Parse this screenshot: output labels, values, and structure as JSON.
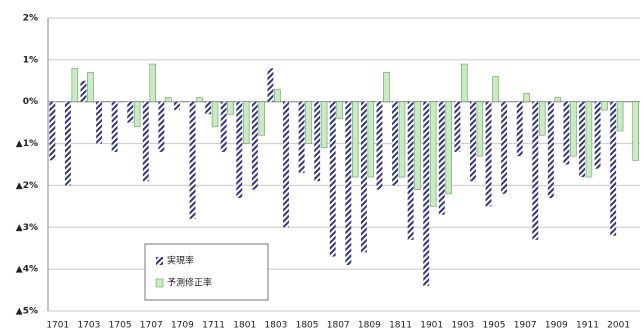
{
  "chart_data": {
    "type": "bar",
    "categories": [
      "1701",
      null,
      "1703",
      null,
      "1705",
      null,
      "1707",
      null,
      "1709",
      null,
      "1711",
      null,
      "1801",
      null,
      "1803",
      null,
      "1805",
      null,
      "1807",
      null,
      "1809",
      null,
      "1811",
      null,
      "1901",
      null,
      "1903",
      null,
      "1905",
      null,
      "1907",
      null,
      "1909",
      null,
      "1911",
      null,
      "2001",
      null
    ],
    "series": [
      {
        "name": "実現率",
        "color": "#33338f",
        "values": [
          -1.4,
          -2.0,
          0.5,
          -1.0,
          -1.2,
          -0.5,
          -1.9,
          -1.2,
          -0.2,
          -2.8,
          -0.3,
          -1.2,
          -2.3,
          -2.1,
          0.8,
          -3.0,
          -1.7,
          -1.9,
          -3.7,
          -3.9,
          -3.6,
          -2.1,
          -2.0,
          -3.3,
          -4.4,
          -2.7,
          -1.2,
          -1.9,
          -2.5,
          -2.2,
          -1.3,
          -3.3,
          -2.3,
          -1.5,
          -1.8,
          -1.6,
          -3.2,
          0
        ]
      },
      {
        "name": "予測修正率",
        "color": "#c8ecc0",
        "values": [
          0,
          0.8,
          0.7,
          0,
          0,
          -0.6,
          0.9,
          0.1,
          0,
          0.1,
          -0.6,
          -0.3,
          -1.0,
          -0.8,
          0.3,
          0,
          -1.0,
          -1.1,
          -0.4,
          -1.8,
          -1.8,
          0.7,
          -1.8,
          -2.1,
          -2.5,
          -2.2,
          0.9,
          -1.3,
          0.6,
          0,
          0.2,
          -0.8,
          0.1,
          -1.3,
          -1.8,
          -0.2,
          -0.7,
          -1.4
        ]
      }
    ],
    "ylim": [
      -5,
      2
    ],
    "yticks": [
      {
        "value": -5,
        "label": "▲5%"
      },
      {
        "value": -4,
        "label": "▲4%"
      },
      {
        "value": -3,
        "label": "▲3%"
      },
      {
        "value": -2,
        "label": "▲2%"
      },
      {
        "value": -1,
        "label": "▲1%"
      },
      {
        "value": 0,
        "label": "0%"
      },
      {
        "value": 1,
        "label": "1%"
      },
      {
        "value": 2,
        "label": "2%"
      }
    ],
    "grid": true
  }
}
